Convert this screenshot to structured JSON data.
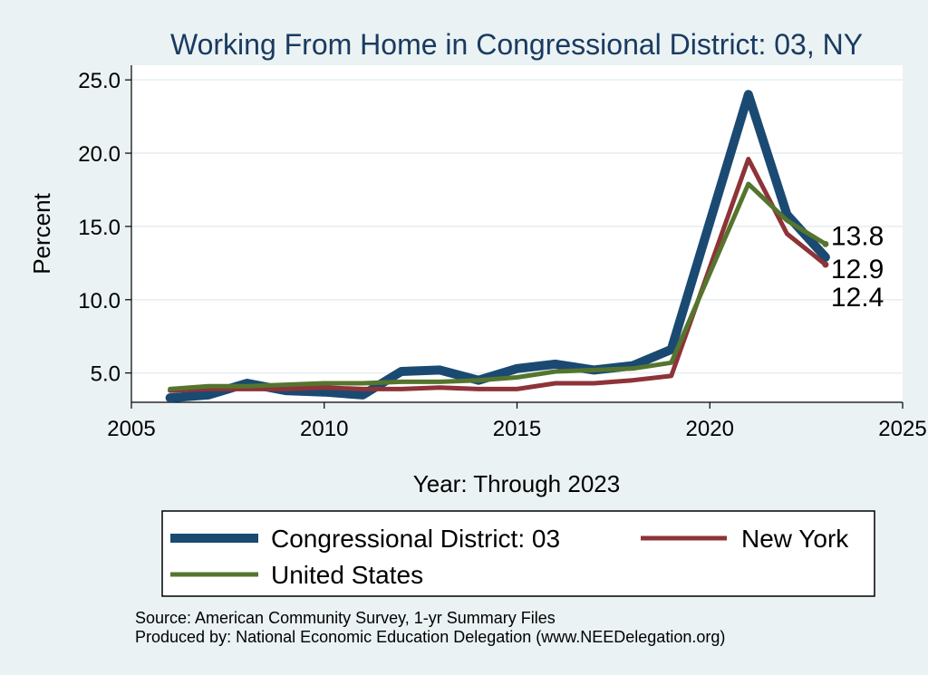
{
  "chart_data": {
    "type": "line",
    "title": "Working From Home in Congressional District: 03, NY",
    "xlabel": "Year: Through 2023",
    "ylabel": "Percent",
    "xlim": [
      2005,
      2025
    ],
    "ylim": [
      3,
      26
    ],
    "xticks": [
      "2005",
      "2010",
      "2015",
      "2020",
      "2025"
    ],
    "yticks": [
      "5.0",
      "10.0",
      "15.0",
      "20.0",
      "25.0"
    ],
    "grid": true,
    "legend_position": "bottom",
    "x": [
      2006,
      2007,
      2008,
      2009,
      2010,
      2011,
      2012,
      2013,
      2014,
      2015,
      2016,
      2017,
      2018,
      2019,
      2021,
      2022,
      2023
    ],
    "series": [
      {
        "name": "Congressional District: 03",
        "color": "#1a4a72",
        "values": [
          3.3,
          3.5,
          4.3,
          3.8,
          3.7,
          3.5,
          5.1,
          5.2,
          4.5,
          5.3,
          5.6,
          5.2,
          5.5,
          6.6,
          24.0,
          15.8,
          12.9
        ]
      },
      {
        "name": "New York",
        "color": "#8e3338",
        "values": [
          3.8,
          3.9,
          3.9,
          3.9,
          4.0,
          3.9,
          3.9,
          4.0,
          3.9,
          3.9,
          4.3,
          4.3,
          4.5,
          4.8,
          19.6,
          14.5,
          12.4
        ]
      },
      {
        "name": "United States",
        "color": "#55752e",
        "values": [
          3.9,
          4.1,
          4.1,
          4.2,
          4.3,
          4.3,
          4.4,
          4.4,
          4.5,
          4.7,
          5.1,
          5.2,
          5.3,
          5.7,
          17.9,
          15.4,
          13.8
        ]
      }
    ],
    "end_labels": [
      {
        "text": "13.8",
        "value": 13.8
      },
      {
        "text": "12.9",
        "value": 12.9
      },
      {
        "text": "12.4",
        "value": 12.4
      }
    ],
    "notes": [
      "Source: American Community Survey, 1-yr Summary Files",
      "Produced by: National Economic Education Delegation (www.NEEDelegation.org)"
    ]
  }
}
